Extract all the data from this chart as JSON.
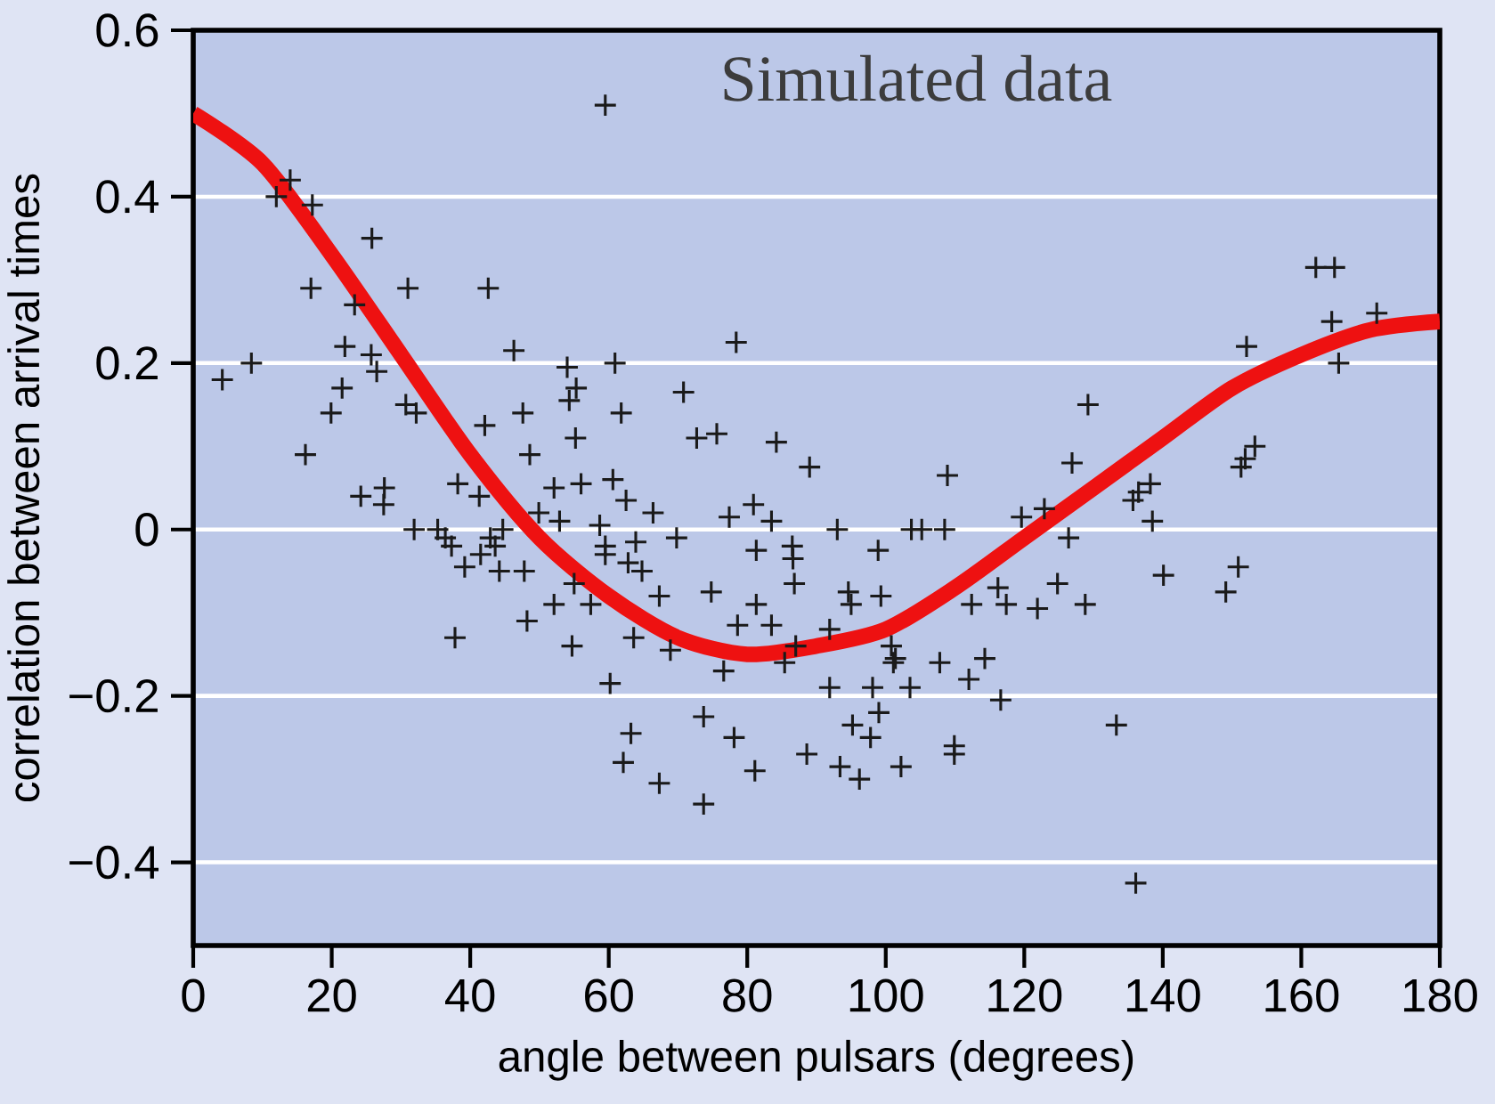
{
  "chart_data": {
    "type": "scatter",
    "xlabel": "angle between pulsars (degrees)",
    "ylabel": "correlation between arrival times",
    "annotations": [
      "Simulated data"
    ],
    "xlim": [
      0,
      180
    ],
    "xticks": [
      0,
      20,
      40,
      60,
      80,
      100,
      120,
      140,
      160,
      180
    ],
    "ylim": [
      -0.5,
      0.6
    ],
    "yticks": [
      {
        "value": -0.4,
        "label": "−0.4"
      },
      {
        "value": -0.2,
        "label": "−0.2"
      },
      0,
      0.2,
      0.4,
      0.6
    ],
    "grid": "y",
    "series": [
      {
        "color": "#1a1a1a",
        "marker": "cross",
        "x": [
          4.2,
          8.4,
          12,
          14,
          17.2,
          17,
          16.2,
          19.9,
          21.5,
          21.9,
          23.3,
          25.8,
          25.7,
          26.5,
          24.2,
          27.6,
          27.5,
          31,
          30.7,
          32.2,
          31.9,
          35.3,
          36.4,
          37.3,
          37.8,
          38.2,
          39.2,
          41.3,
          41.5,
          42.1,
          42.6,
          42.9,
          43.6,
          44.7,
          44.2,
          46.3,
          47.6,
          47.8,
          48.2,
          48.6,
          49.9,
          52.1,
          52.1,
          52.9,
          54,
          54.3,
          55.3,
          55.2,
          56,
          54.7,
          55,
          57.4,
          58.7,
          59.5,
          59.5,
          59.5,
          60.9,
          60.6,
          60.2,
          61.8,
          62.5,
          62.8,
          63.9,
          63.6,
          63.2,
          62.1,
          64.8,
          66.4,
          67.3,
          67.3,
          68.9,
          69.8,
          70.8,
          72.7,
          73.7,
          73.7,
          74.8,
          75.6,
          76.6,
          77.4,
          78.1,
          78.4,
          78.6,
          80.9,
          81.3,
          81.3,
          81.1,
          83.5,
          83.5,
          84.2,
          86.5,
          86.6,
          86.8,
          87,
          85.4,
          89,
          88.6,
          91.9,
          91.9,
          93,
          93.4,
          94.6,
          95,
          95.2,
          96.2,
          97.8,
          98.1,
          98.9,
          99,
          99.3,
          100.8,
          101.1,
          101.4,
          102.2,
          103.5,
          103.7,
          105.2,
          107.8,
          108.5,
          108.9,
          109.9,
          109.9,
          112,
          112.4,
          114.3,
          116.2,
          116.6,
          117.4,
          119.6,
          121.9,
          122.9,
          124.8,
          126.4,
          126.9,
          128.8,
          129.2,
          133.3,
          135.7,
          136.5,
          136.1,
          138.2,
          138.5,
          140.1,
          149.1,
          150.9,
          151.3,
          151.9,
          153.3,
          152.1,
          162.1,
          164.8,
          164.4,
          165.4,
          170.9
        ],
        "values": [
          0.18,
          0.2,
          0.4,
          0.42,
          0.39,
          0.29,
          0.09,
          0.14,
          0.17,
          0.22,
          0.27,
          0.35,
          0.21,
          0.19,
          0.04,
          0.05,
          0.03,
          0.29,
          0.15,
          0.14,
          0.0,
          0.0,
          -0.01,
          -0.02,
          -0.13,
          0.055,
          -0.045,
          0.04,
          -0.03,
          0.125,
          0.29,
          -0.01,
          -0.02,
          0.0,
          -0.05,
          0.215,
          0.14,
          -0.05,
          -0.11,
          0.09,
          0.02,
          0.05,
          -0.09,
          0.01,
          0.195,
          0.155,
          0.17,
          0.11,
          0.055,
          -0.14,
          -0.065,
          -0.09,
          0.005,
          -0.02,
          -0.03,
          0.51,
          0.2,
          0.06,
          -0.185,
          0.14,
          0.035,
          -0.04,
          -0.015,
          -0.13,
          -0.245,
          -0.28,
          -0.05,
          0.02,
          -0.08,
          -0.305,
          -0.145,
          -0.01,
          0.165,
          0.11,
          -0.225,
          -0.33,
          -0.075,
          0.115,
          -0.17,
          0.015,
          -0.25,
          0.225,
          -0.115,
          0.03,
          -0.025,
          -0.09,
          -0.29,
          0.01,
          -0.115,
          0.105,
          -0.02,
          -0.035,
          -0.065,
          -0.14,
          -0.16,
          0.075,
          -0.27,
          -0.12,
          -0.19,
          0.0,
          -0.285,
          -0.075,
          -0.09,
          -0.235,
          -0.3,
          -0.25,
          -0.19,
          -0.025,
          -0.22,
          -0.08,
          -0.14,
          -0.16,
          -0.155,
          -0.285,
          -0.19,
          0.0,
          0.0,
          -0.16,
          0.0,
          0.065,
          -0.26,
          -0.27,
          -0.18,
          -0.09,
          -0.155,
          -0.07,
          -0.205,
          -0.09,
          0.015,
          -0.095,
          0.025,
          -0.065,
          -0.01,
          0.08,
          -0.09,
          0.15,
          -0.235,
          0.035,
          0.045,
          -0.425,
          0.055,
          0.01,
          -0.055,
          -0.075,
          -0.045,
          0.075,
          0.085,
          0.1,
          0.22,
          0.315,
          0.315,
          0.25,
          0.2,
          0.26
        ]
      },
      {
        "type": "line",
        "color": "#ee1111",
        "marker": "none",
        "line_style": "solid",
        "x": [
          0,
          10,
          20,
          30,
          40,
          50,
          60,
          70,
          80,
          90,
          100,
          110,
          120,
          130,
          140,
          150,
          160,
          170,
          180
        ],
        "values": [
          0.5,
          0.44,
          0.33,
          0.21,
          0.09,
          -0.01,
          -0.08,
          -0.13,
          -0.15,
          -0.14,
          -0.12,
          -0.07,
          -0.01,
          0.05,
          0.11,
          0.17,
          0.21,
          0.24,
          0.25
        ]
      }
    ]
  }
}
